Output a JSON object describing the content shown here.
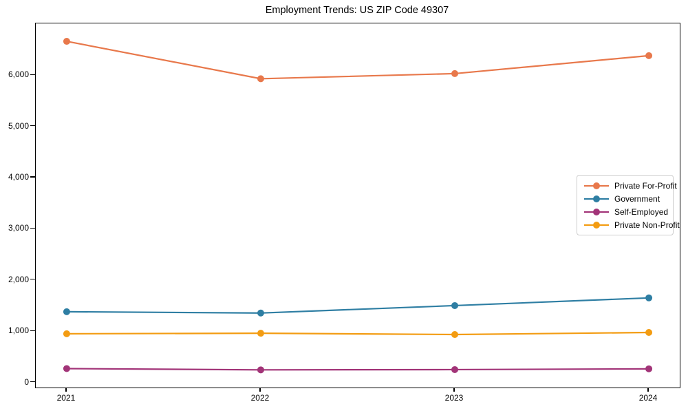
{
  "title": "Employment Trends: US ZIP Code 49307",
  "chart_data": {
    "type": "line",
    "title": "Employment Trends: US ZIP Code 49307",
    "xlabel": "",
    "ylabel": "",
    "categories": [
      "2021",
      "2022",
      "2023",
      "2024"
    ],
    "x": [
      2021,
      2022,
      2023,
      2024
    ],
    "series": [
      {
        "name": "Private For-Profit",
        "color": "#e8784b",
        "values": [
          6660,
          5930,
          6030,
          6380
        ]
      },
      {
        "name": "Government",
        "color": "#2e7ea3",
        "values": [
          1380,
          1355,
          1500,
          1650
        ]
      },
      {
        "name": "Self-Employed",
        "color": "#a23478",
        "values": [
          270,
          245,
          250,
          265
        ]
      },
      {
        "name": "Private Non-Profit",
        "color": "#f39c12",
        "values": [
          950,
          960,
          935,
          975
        ]
      }
    ],
    "ylim": [
      -100,
      7010
    ],
    "yticks": {
      "values": [
        0,
        1000,
        2000,
        3000,
        4000,
        5000,
        6000
      ],
      "labels": [
        "0",
        "1,000",
        "2,000",
        "3,000",
        "4,000",
        "5,000",
        "6,000"
      ]
    },
    "grid": false,
    "legend_position": "center right"
  }
}
